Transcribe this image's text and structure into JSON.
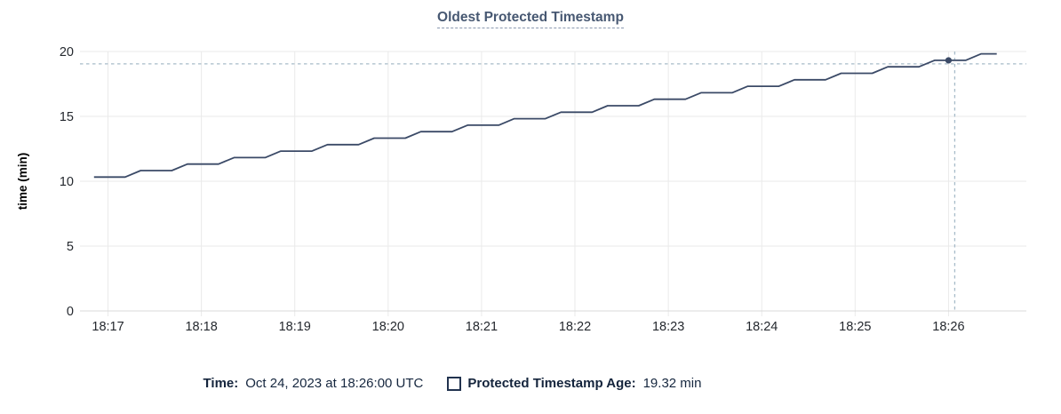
{
  "colors": {
    "line": "#3b4a67",
    "point": "#3b4a67",
    "crosshair": "#a7bbc9",
    "grid": "#eaeaea",
    "axis": "#d9d9d9",
    "tick_text": "#24282e",
    "axis_title_text": "#000000",
    "title_text": "#475872",
    "legend_text": "#16273f"
  },
  "legend": {
    "time_label": "Time:",
    "time_value": "Oct 24, 2023 at 18:26:00 UTC",
    "series_label": "Protected Timestamp Age:",
    "series_value": "19.32 min"
  },
  "chart_data": {
    "type": "line",
    "title": "Oldest Protected Timestamp",
    "xlabel": "",
    "ylabel": "time (min)",
    "ylim": [
      0,
      20
    ],
    "yticks": [
      0,
      5,
      10,
      15,
      20
    ],
    "xlim": [
      "18:16:42",
      "18:26:50"
    ],
    "xticks": [
      "18:17",
      "18:18",
      "18:19",
      "18:20",
      "18:21",
      "18:22",
      "18:23",
      "18:24",
      "18:25",
      "18:26"
    ],
    "grid": true,
    "legend_position": "bottom",
    "series": [
      {
        "name": "Protected Timestamp Age",
        "points": [
          [
            "18:16:51",
            10.32
          ],
          [
            "18:17:11",
            10.32
          ],
          [
            "18:17:21",
            10.82
          ],
          [
            "18:17:41",
            10.82
          ],
          [
            "18:17:51",
            11.32
          ],
          [
            "18:18:11",
            11.32
          ],
          [
            "18:18:21",
            11.82
          ],
          [
            "18:18:41",
            11.82
          ],
          [
            "18:18:51",
            12.32
          ],
          [
            "18:19:11",
            12.32
          ],
          [
            "18:19:21",
            12.82
          ],
          [
            "18:19:41",
            12.82
          ],
          [
            "18:19:51",
            13.32
          ],
          [
            "18:20:11",
            13.32
          ],
          [
            "18:20:21",
            13.82
          ],
          [
            "18:20:41",
            13.82
          ],
          [
            "18:20:51",
            14.32
          ],
          [
            "18:21:11",
            14.32
          ],
          [
            "18:21:21",
            14.82
          ],
          [
            "18:21:41",
            14.82
          ],
          [
            "18:21:51",
            15.32
          ],
          [
            "18:22:11",
            15.32
          ],
          [
            "18:22:21",
            15.82
          ],
          [
            "18:22:41",
            15.82
          ],
          [
            "18:22:51",
            16.32
          ],
          [
            "18:23:11",
            16.32
          ],
          [
            "18:23:21",
            16.82
          ],
          [
            "18:23:41",
            16.82
          ],
          [
            "18:23:51",
            17.32
          ],
          [
            "18:24:11",
            17.32
          ],
          [
            "18:24:21",
            17.82
          ],
          [
            "18:24:41",
            17.82
          ],
          [
            "18:24:51",
            18.32
          ],
          [
            "18:25:11",
            18.32
          ],
          [
            "18:25:21",
            18.82
          ],
          [
            "18:25:41",
            18.82
          ],
          [
            "18:25:51",
            19.32
          ],
          [
            "18:26:11",
            19.32
          ],
          [
            "18:26:21",
            19.82
          ],
          [
            "18:26:31",
            19.82
          ]
        ]
      }
    ],
    "hover": {
      "crosshair_time": "18:26:04",
      "crosshair_value": 19.05,
      "point_time": "18:26:00",
      "point_value": 19.32
    }
  }
}
